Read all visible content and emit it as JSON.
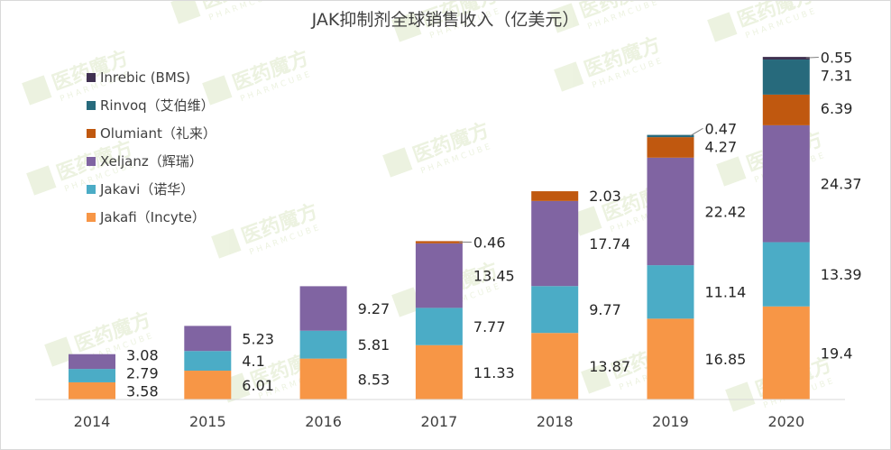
{
  "chart_data": {
    "type": "bar",
    "stacked": true,
    "title": "JAK抑制剂全球销售收入（亿美元）",
    "xlabel": "",
    "ylabel": "",
    "ylim": [
      0,
      70
    ],
    "grid": false,
    "legend_position": "top-left",
    "categories": [
      "2014",
      "2015",
      "2016",
      "2017",
      "2018",
      "2019",
      "2020"
    ],
    "series": [
      {
        "name": "Jakafi（Incyte）",
        "color": "#F79646",
        "values": [
          3.58,
          6.01,
          8.53,
          11.33,
          13.87,
          16.85,
          19.4
        ]
      },
      {
        "name": "Jakavi（诺华）",
        "color": "#4BACC6",
        "values": [
          2.79,
          4.1,
          5.81,
          7.77,
          9.77,
          11.14,
          13.39
        ]
      },
      {
        "name": "Xeljanz（辉瑞）",
        "color": "#8064A2",
        "values": [
          3.08,
          5.23,
          9.27,
          13.45,
          17.74,
          22.42,
          24.37
        ]
      },
      {
        "name": "Olumiant（礼来）",
        "color": "#C0580F",
        "values": [
          null,
          null,
          null,
          0.46,
          2.03,
          4.27,
          6.39
        ]
      },
      {
        "name": "Rinvoq（艾伯维）",
        "color": "#276A7C",
        "values": [
          null,
          null,
          null,
          null,
          null,
          0.47,
          7.31
        ]
      },
      {
        "name": "Inrebic (BMS)",
        "color": "#403151",
        "values": [
          null,
          null,
          null,
          null,
          null,
          null,
          0.55
        ]
      }
    ]
  },
  "watermark": {
    "name": "医药魔方",
    "sub": "PHARMCUBE",
    "color": "#9BBB59"
  }
}
